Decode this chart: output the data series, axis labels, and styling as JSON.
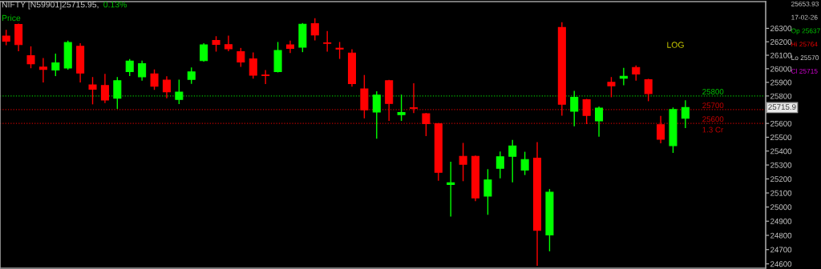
{
  "chart_data": {
    "type": "candlestick",
    "title": "NIFTY [N59901]25715.95,",
    "subtitle": "0.13%",
    "categories": [
      null,
      null,
      null,
      null,
      null,
      null,
      null,
      null,
      null,
      null,
      null,
      null,
      null,
      null,
      null,
      null,
      null,
      null,
      null,
      null,
      null,
      null,
      null,
      null,
      null,
      null,
      null,
      null,
      null,
      null,
      null,
      null,
      null,
      null,
      null,
      null,
      null,
      null,
      null,
      null,
      null,
      null,
      null,
      null,
      null,
      null,
      null,
      null,
      null,
      null,
      null,
      null,
      null,
      null,
      null,
      null,
      null,
      null,
      null,
      null,
      null,
      null
    ],
    "ohlc": [
      [
        26242,
        26285,
        26179,
        26204
      ],
      [
        26329,
        26331,
        26133,
        26179
      ],
      [
        26096,
        26162,
        26008,
        26037
      ],
      [
        26012,
        26075,
        25904,
        25996
      ],
      [
        25991,
        26108,
        25950,
        26044
      ],
      [
        26006,
        26204,
        25998,
        26194
      ],
      [
        26166,
        26185,
        25904,
        25968
      ],
      [
        25881,
        25935,
        25743,
        25849
      ],
      [
        25877,
        25958,
        25752,
        25770
      ],
      [
        25783,
        25935,
        25710,
        25912
      ],
      [
        25979,
        26068,
        25950,
        26056
      ],
      [
        25941,
        26056,
        25916,
        26037
      ],
      [
        25962,
        25991,
        25849,
        25872
      ],
      [
        25916,
        25941,
        25787,
        25831
      ],
      [
        25775,
        25916,
        25745,
        25829
      ],
      [
        25922,
        26006,
        25893,
        25977
      ],
      [
        26060,
        26185,
        26056,
        26177
      ],
      [
        26210,
        26237,
        26131,
        26181
      ],
      [
        26179,
        26242,
        26133,
        26148
      ],
      [
        26127,
        26150,
        26018,
        26050
      ],
      [
        26073,
        26116,
        25931,
        25952
      ],
      [
        25954,
        25987,
        25891,
        25950
      ],
      [
        25979,
        26194,
        25977,
        26135
      ],
      [
        26177,
        26204,
        26121,
        26150
      ],
      [
        26160,
        26335,
        26127,
        26331
      ],
      [
        26335,
        26371,
        26214,
        26250
      ],
      [
        26192,
        26275,
        26131,
        26188
      ],
      [
        26152,
        26194,
        26077,
        26146
      ],
      [
        26116,
        26141,
        25873,
        25891
      ],
      [
        25852,
        25950,
        25641,
        25699
      ],
      [
        25683,
        25831,
        25493,
        25806
      ],
      [
        25912,
        25914,
        25622,
        25745
      ],
      [
        25664,
        25806,
        25622,
        25679
      ],
      [
        25714,
        25889,
        25679,
        25710
      ],
      [
        25670,
        25672,
        25512,
        25599
      ],
      [
        25597,
        25599,
        25191,
        25247
      ],
      [
        25161,
        25320,
        24936,
        25172
      ],
      [
        25362,
        25455,
        25188,
        25305
      ],
      [
        25362,
        25364,
        25045,
        25065
      ],
      [
        25078,
        25266,
        24949,
        25193
      ],
      [
        25276,
        25393,
        25209,
        25359
      ],
      [
        25362,
        25476,
        25180,
        25437
      ],
      [
        25263,
        25391,
        25232,
        25339
      ],
      [
        25349,
        25460,
        24590,
        24836
      ],
      [
        24803,
        25124,
        24692,
        25105
      ],
      [
        26306,
        26342,
        25660,
        25739
      ],
      [
        25689,
        25833,
        25583,
        25791
      ],
      [
        25772,
        25775,
        25599,
        25658
      ],
      [
        25618,
        25720,
        25508,
        25712
      ],
      [
        25900,
        25935,
        25795,
        25875
      ],
      [
        25931,
        26002,
        25883,
        25945
      ],
      [
        26010,
        26021,
        25916,
        25962
      ],
      [
        25920,
        25922,
        25766,
        25818
      ],
      [
        25591,
        25651,
        25460,
        25485
      ],
      [
        25439,
        25712,
        25391,
        25701
      ],
      [
        25637,
        25764,
        25570,
        25715
      ],
      null,
      null,
      null,
      null,
      null,
      null
    ],
    "colors": [
      "#ff0000",
      "#ff0000",
      "#ff0000",
      "#ff0000",
      "#00ff00",
      "#00ff00",
      "#ff0000",
      "#ff0000",
      "#ff0000",
      "#00ff00",
      "#00ff00",
      "#00ff00",
      "#ff0000",
      "#ff0000",
      "#00ff00",
      "#00ff00",
      "#00ff00",
      "#ff0000",
      "#ff0000",
      "#ff0000",
      "#ff0000",
      "#ff0000",
      "#00ff00",
      "#ff0000",
      "#00ff00",
      "#ff0000",
      "#ff0000",
      "#ff0000",
      "#ff0000",
      "#ff0000",
      "#00ff00",
      "#ff0000",
      "#00ff00",
      "#ff0000",
      "#ff0000",
      "#ff0000",
      "#00ff00",
      "#ff0000",
      "#ff0000",
      "#00ff00",
      "#00ff00",
      "#00ff00",
      "#00ff00",
      "#ff0000",
      "#00ff00",
      "#ff0000",
      "#00ff00",
      "#ff0000",
      "#00ff00",
      "#ff0000",
      "#00ff00",
      "#ff0000",
      "#ff0000",
      "#ff0000",
      "#00ff00",
      "#00ff00",
      null,
      null,
      null,
      null,
      null,
      null
    ],
    "log": true,
    "ylim": [
      24570,
      26500
    ],
    "yticks": [
      24600,
      24700,
      24800,
      24900,
      25000,
      25100,
      25200,
      25300,
      25400,
      25500,
      25600,
      {
        "value": 25700,
        "label": null
      },
      25800,
      25900,
      26000,
      26100,
      26200,
      26300
    ],
    "tick_labels": "y",
    "ref_lines": [
      {
        "axis": "y",
        "value": 25800,
        "label": "25800",
        "color": "#00c000",
        "line_style": "dotted"
      },
      {
        "axis": "y",
        "value": 25700,
        "label": "25700",
        "color": "#c00000",
        "line_style": "dotted"
      },
      {
        "axis": "y",
        "value": 25600,
        "label": "25600",
        "color": "#c00000",
        "line_style": "dotted"
      }
    ],
    "annotations": [
      "Price",
      "LOG",
      "25653.93",
      "17-02-26",
      "Op 25637",
      "Hi 25764",
      "Lo 25570",
      "Cl 25715",
      {
        "text": "1.3 Cr",
        "y": 25600
      },
      "25715.9"
    ]
  }
}
